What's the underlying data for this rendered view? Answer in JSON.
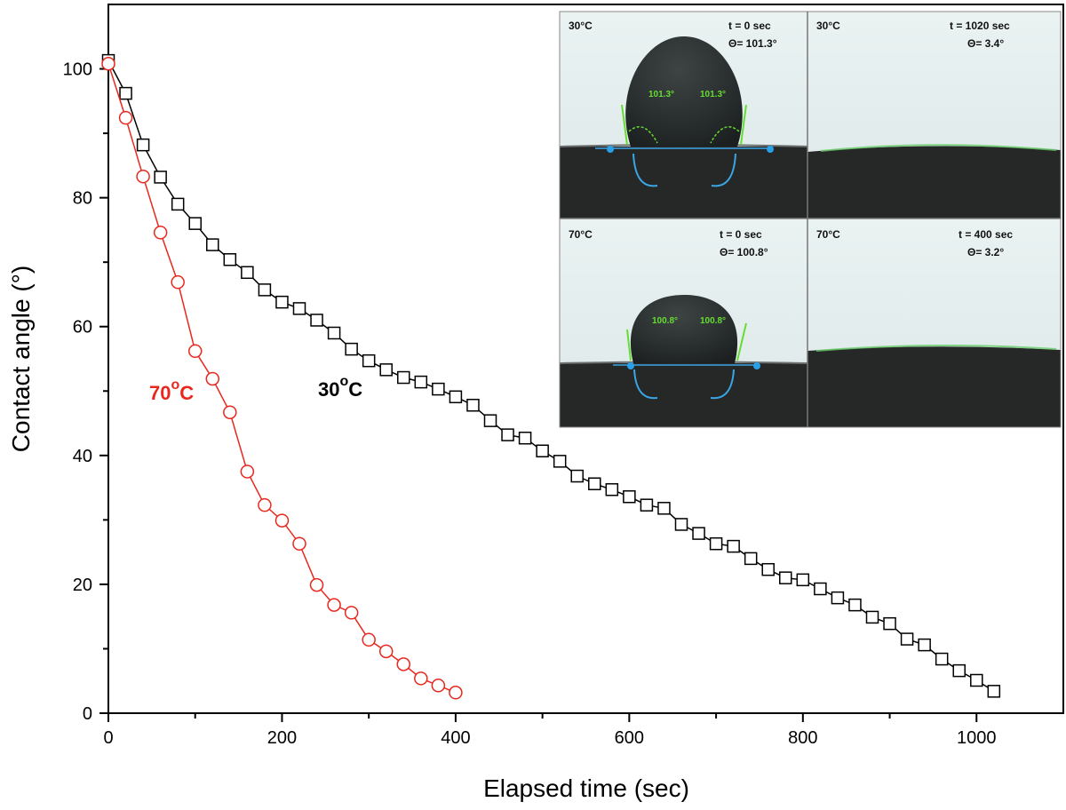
{
  "chart_data": {
    "type": "line",
    "title": "",
    "xlabel": "Elapsed time (sec)",
    "ylabel": "Contact angle (°)",
    "xlim": [
      0,
      1100
    ],
    "ylim": [
      0,
      110
    ],
    "x_ticks": [
      0,
      200,
      400,
      600,
      800,
      1000
    ],
    "y_ticks": [
      0,
      20,
      40,
      60,
      80,
      100
    ],
    "x_tick_labels": [
      "0",
      "200",
      "400",
      "600",
      "800",
      "1000"
    ],
    "y_tick_labels": [
      "0",
      "20",
      "40",
      "60",
      "80",
      "100"
    ],
    "grid": false,
    "series": [
      {
        "name": "30°C",
        "color": "#000000",
        "marker": "square",
        "label_main": "30",
        "label_sup": "o",
        "label_unit": "C",
        "x": [
          0,
          20,
          40,
          60,
          80,
          100,
          120,
          140,
          160,
          180,
          200,
          220,
          240,
          260,
          280,
          300,
          320,
          340,
          360,
          380,
          400,
          420,
          440,
          460,
          480,
          500,
          520,
          540,
          560,
          580,
          600,
          620,
          640,
          660,
          680,
          700,
          720,
          740,
          760,
          780,
          800,
          820,
          840,
          860,
          880,
          900,
          920,
          940,
          960,
          980,
          1000,
          1020
        ],
        "y": [
          101.3,
          96.2,
          88.2,
          83.2,
          79.0,
          76.0,
          72.7,
          70.4,
          68.4,
          65.7,
          63.8,
          62.8,
          61.0,
          59.0,
          56.5,
          54.7,
          53.3,
          52.1,
          51.4,
          50.3,
          49.1,
          47.8,
          45.4,
          43.2,
          42.7,
          40.7,
          39.1,
          36.8,
          35.6,
          34.7,
          33.6,
          32.3,
          31.8,
          29.3,
          27.9,
          26.3,
          25.9,
          24.0,
          22.3,
          21.0,
          20.7,
          19.3,
          17.9,
          16.8,
          14.9,
          13.9,
          11.5,
          10.6,
          8.4,
          6.6,
          5.1,
          3.4
        ]
      },
      {
        "name": "70°C",
        "color": "#e8281e",
        "marker": "circle",
        "label_main": "70",
        "label_sup": "o",
        "label_unit": "C",
        "x": [
          0,
          20,
          40,
          60,
          80,
          100,
          120,
          140,
          160,
          180,
          200,
          220,
          240,
          260,
          280,
          300,
          320,
          340,
          360,
          380,
          400
        ],
        "y": [
          100.8,
          92.4,
          83.3,
          74.6,
          66.9,
          56.2,
          51.9,
          46.7,
          37.5,
          32.3,
          29.9,
          26.3,
          19.9,
          16.8,
          15.6,
          11.4,
          9.6,
          7.6,
          5.4,
          4.3,
          3.2
        ]
      }
    ],
    "inset": {
      "panels": [
        {
          "temp": "30°C",
          "time": "t = 0 sec",
          "angle": "Θ= 101.3°",
          "left_angle": "101.3°",
          "right_angle": "101.3°"
        },
        {
          "temp": "30°C",
          "time": "t = 1020 sec",
          "angle": "Θ= 3.4°"
        },
        {
          "temp": "70°C",
          "time": "t = 0 sec",
          "angle": "Θ= 100.8°",
          "left_angle": "100.8°",
          "right_angle": "100.8°"
        },
        {
          "temp": "70°C",
          "time": "t = 400 sec",
          "angle": "Θ= 3.2°"
        }
      ]
    }
  }
}
